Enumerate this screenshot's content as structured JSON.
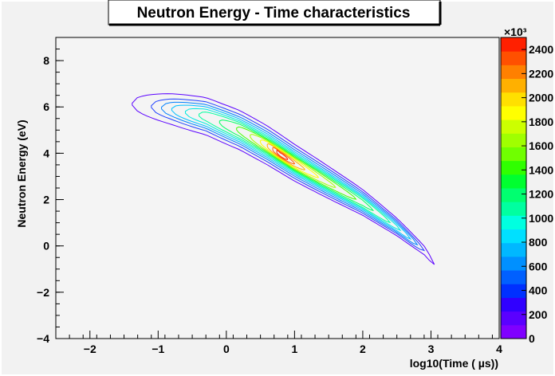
{
  "chart_data": {
    "type": "contour",
    "title": "Neutron Energy - Time characteristics",
    "xlabel": "log10(Time ( µs))",
    "ylabel": "Neutron Energy (eV)",
    "xlim": [
      -2.5,
      4
    ],
    "ylim": [
      -4,
      9
    ],
    "xticks": [
      "−2",
      "−1",
      "0",
      "1",
      "2",
      "3",
      "4"
    ],
    "yticks": [
      "−4",
      "−2",
      "0",
      "2",
      "4",
      "6",
      "8"
    ],
    "xtick_values": [
      -2,
      -1,
      0,
      1,
      2,
      3,
      4
    ],
    "ytick_values": [
      -4,
      -2,
      0,
      2,
      4,
      6,
      8
    ],
    "grid": false,
    "colorbar": {
      "exponent_label": "×10³",
      "range": [
        0,
        2500
      ],
      "tick_values": [
        0,
        200,
        400,
        600,
        800,
        1000,
        1200,
        1400,
        1600,
        1800,
        2000,
        2200,
        2400
      ],
      "tick_labels": [
        "0",
        "200",
        "400",
        "600",
        "800",
        "1000",
        "1200",
        "1400",
        "1600",
        "1800",
        "2000",
        "2200",
        "2400"
      ],
      "colors": [
        "#8000ff",
        "#5a00ff",
        "#3000ff",
        "#0030ff",
        "#0060ff",
        "#0090ff",
        "#00b8ff",
        "#00e0ff",
        "#00ffe0",
        "#00ffa0",
        "#00ff70",
        "#00ff30",
        "#30ff00",
        "#70ff00",
        "#a0ff00",
        "#ccff00",
        "#ffff00",
        "#ffe000",
        "#ffb000",
        "#ff8000",
        "#ff5000",
        "#ff2000"
      ]
    },
    "ridge": [
      [
        -1.35,
        6.08
      ],
      [
        -0.8,
        5.85
      ],
      [
        -0.3,
        5.55
      ],
      [
        0.2,
        4.95
      ],
      [
        0.6,
        4.3
      ],
      [
        1.0,
        3.55
      ],
      [
        1.5,
        2.7
      ],
      [
        2.0,
        1.85
      ],
      [
        2.5,
        0.8
      ],
      [
        2.9,
        -0.2
      ],
      [
        3.05,
        -0.8
      ]
    ],
    "levels": [
      {
        "value": 50,
        "color": "#5a00ff",
        "xs": [
          -1.38,
          3.05
        ],
        "w0": 0.16,
        "w1": 0.08
      },
      {
        "value": 200,
        "color": "#2040ff",
        "xs": [
          -1.1,
          2.9
        ],
        "w0": 0.13,
        "w1": 0.07
      },
      {
        "value": 400,
        "color": "#0080ff",
        "xs": [
          -0.95,
          2.8
        ],
        "w0": 0.11,
        "w1": 0.06
      },
      {
        "value": 600,
        "color": "#00c0ff",
        "xs": [
          -0.8,
          2.7
        ],
        "w0": 0.095,
        "w1": 0.05
      },
      {
        "value": 800,
        "color": "#00e8e0",
        "xs": [
          -0.6,
          2.55
        ],
        "w0": 0.08,
        "w1": 0.045
      },
      {
        "value": 1000,
        "color": "#00ffa0",
        "xs": [
          -0.4,
          2.4
        ],
        "w0": 0.068,
        "w1": 0.04
      },
      {
        "value": 1200,
        "color": "#00ff60",
        "xs": [
          -0.1,
          2.15
        ],
        "w0": 0.058,
        "w1": 0.035
      },
      {
        "value": 1400,
        "color": "#40ff00",
        "xs": [
          0.15,
          1.9
        ],
        "w0": 0.05,
        "w1": 0.03
      },
      {
        "value": 1600,
        "color": "#a0ff00",
        "xs": [
          0.35,
          1.6
        ],
        "w0": 0.042,
        "w1": 0.026
      },
      {
        "value": 1800,
        "color": "#ffff00",
        "xs": [
          0.5,
          1.35
        ],
        "w0": 0.035,
        "w1": 0.022
      },
      {
        "value": 2000,
        "color": "#ffb000",
        "xs": [
          0.6,
          1.15
        ],
        "w0": 0.028,
        "w1": 0.018
      },
      {
        "value": 2200,
        "color": "#ff6000",
        "xs": [
          0.68,
          1.0
        ],
        "w0": 0.02,
        "w1": 0.014
      },
      {
        "value": 2400,
        "color": "#ff2000",
        "xs": [
          0.74,
          0.9
        ],
        "w0": 0.012,
        "w1": 0.01
      }
    ]
  }
}
